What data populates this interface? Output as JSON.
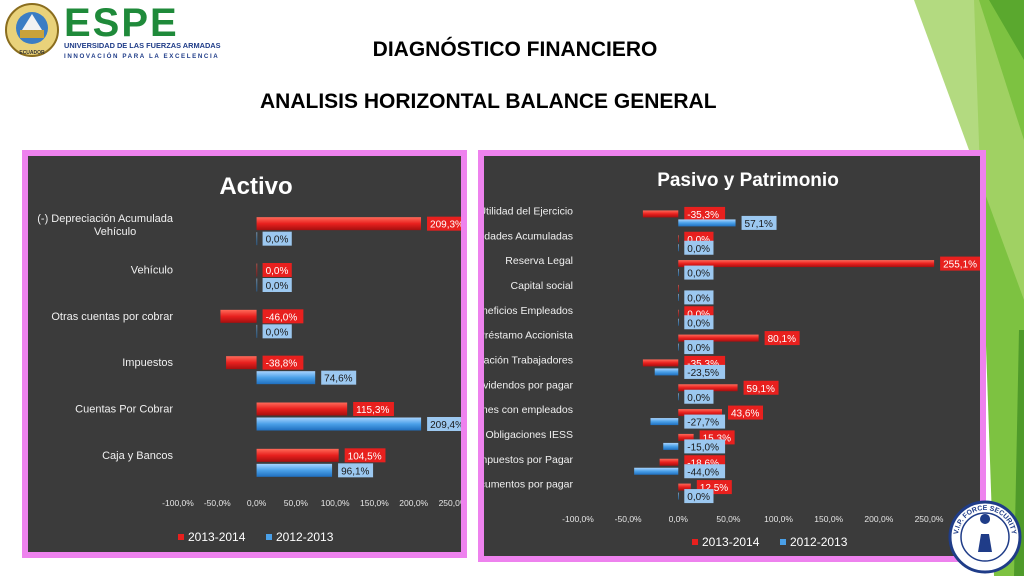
{
  "header": {
    "logo_text": "ESPE",
    "logo_subtitle": "UNIVERSIDAD DE LAS FUERZAS ARMADAS",
    "logo_motto": "INNOVACIÓN PARA LA EXCELENCIA",
    "crest_label": "ECUADOR",
    "title": "DIAGNÓSTICO FINANCIERO",
    "subtitle": "ANALISIS HORIZONTAL BALANCE GENERAL"
  },
  "colors": {
    "series_2013_2014": "#e8201e",
    "series_2012_2013": "#4aa0e8",
    "panel_border": "#ee82ee",
    "chart_bg": "#3b3b3b",
    "accent_green": "#7dc241"
  },
  "seal_text": "V.I.P. FORCE SECURITY",
  "chart_data": [
    {
      "type": "bar",
      "orientation": "horizontal",
      "title": "Activo",
      "categories": [
        "(-) Depreciación Acumulada Vehículo",
        "Vehículo",
        "Otras cuentas por cobrar",
        "Impuestos",
        "Cuentas Por Cobrar",
        "Caja y Bancos"
      ],
      "series": [
        {
          "name": "2013-2014",
          "values": [
            209.3,
            0.0,
            -46.0,
            -38.8,
            115.3,
            104.5
          ],
          "labels": [
            "209,3%",
            "0,0%",
            "-46,0%",
            "-38,8%",
            "115,3%",
            "104,5%"
          ]
        },
        {
          "name": "2012-2013",
          "values": [
            0.0,
            0.0,
            0.0,
            74.6,
            209.4,
            96.1
          ],
          "labels": [
            "0,0%",
            "0,0%",
            "0,0%",
            "74,6%",
            "209,4%",
            "96,1%"
          ]
        }
      ],
      "xlim": [
        -100,
        250
      ],
      "xticks": [
        "-100,0%",
        "-50,0%",
        "0,0%",
        "50,0%",
        "100,0%",
        "150,0%",
        "200,0%",
        "250,0%"
      ],
      "legend": "bottom"
    },
    {
      "type": "bar",
      "orientation": "horizontal",
      "title": "Pasivo y Patrimonio",
      "categories": [
        "Utilidad del Ejercicio",
        "Utilidades Acumuladas",
        "Reserva Legal",
        "Capital social",
        "Provisiones  beneficios Empleados",
        "Préstamo Accionista",
        "Participación Trabajadores",
        "Dividendos por pagar",
        "Obligaciones con empleados",
        "Obligaciones IESS",
        "Impuestos por Pagar",
        "Cuentas y Documentos por pagar"
      ],
      "series": [
        {
          "name": "2013-2014",
          "values": [
            -35.3,
            0.0,
            255.1,
            0.0,
            0.0,
            80.1,
            -35.3,
            59.1,
            43.6,
            15.3,
            -18.6,
            12.5
          ],
          "labels": [
            "-35,3%",
            "0,0%",
            "255,1%",
            "",
            "0,0%",
            "80,1%",
            "-35,3%",
            "59,1%",
            "43,6%",
            "15,3%",
            "-18,6%",
            "12,5%"
          ]
        },
        {
          "name": "2012-2013",
          "values": [
            57.1,
            0.0,
            0.0,
            0.0,
            0.0,
            0.0,
            -23.5,
            0.0,
            -27.7,
            -15.0,
            -44.0,
            0.0
          ],
          "labels": [
            "57,1%",
            "0,0%",
            "0,0%",
            "0,0%",
            "0,0%",
            "0,0%",
            "-23,5%",
            "0,0%",
            "-27,7%",
            "-15,0%",
            "-44,0%",
            "0,0%"
          ]
        }
      ],
      "xlim": [
        -100,
        250
      ],
      "xticks": [
        "-100,0%",
        "-50,0%",
        "0,0%",
        "50,0%",
        "100,0%",
        "150,0%",
        "200,0%",
        "250,0%"
      ],
      "legend": "bottom"
    }
  ]
}
